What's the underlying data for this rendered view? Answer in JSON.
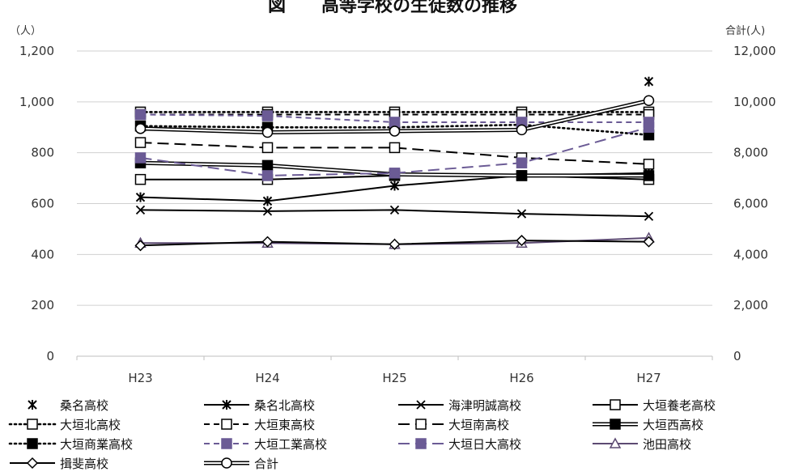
{
  "chart_data": {
    "type": "line",
    "title": "図　　高等学校の生徒数の推移",
    "left_unit": "（人）",
    "right_unit": "合計(人)",
    "categories": [
      "H23",
      "H24",
      "H25",
      "H26",
      "H27"
    ],
    "ylim": [
      0,
      1200
    ],
    "yticks": [
      "0",
      "200",
      "400",
      "600",
      "800",
      "1,000",
      "1,200"
    ],
    "y2lim": [
      0,
      12000
    ],
    "y2ticks": [
      "0",
      "2,000",
      "4,000",
      "6,000",
      "8,000",
      "10,000",
      "12,000"
    ],
    "grid": "horizontal",
    "legend_position": "bottom",
    "series": [
      {
        "name": "桑名高校",
        "values": [
          null,
          null,
          null,
          null,
          1080
        ],
        "axis": "left",
        "color": "#000000",
        "dash": "none",
        "line": false,
        "marker": "asterisk"
      },
      {
        "name": "桑名北高校",
        "values": [
          625,
          610,
          670,
          710,
          720
        ],
        "axis": "left",
        "color": "#000000",
        "dash": "solid",
        "line": true,
        "marker": "asterisk"
      },
      {
        "name": "海津明誠高校",
        "values": [
          575,
          570,
          575,
          560,
          550
        ],
        "axis": "left",
        "color": "#000000",
        "dash": "solid",
        "line": true,
        "marker": "x"
      },
      {
        "name": "大垣養老高校",
        "values": [
          695,
          695,
          710,
          710,
          695
        ],
        "axis": "left",
        "color": "#000000",
        "dash": "solid",
        "line": true,
        "marker": "square-open"
      },
      {
        "name": "大垣北高校",
        "values": [
          960,
          960,
          960,
          960,
          960
        ],
        "axis": "left",
        "color": "#000000",
        "dash": "dot",
        "line": true,
        "marker": "square-open"
      },
      {
        "name": "大垣東高校",
        "values": [
          950,
          950,
          950,
          950,
          950
        ],
        "axis": "left",
        "color": "#000000",
        "dash": "dash",
        "line": true,
        "marker": "square-open"
      },
      {
        "name": "大垣南高校",
        "values": [
          840,
          820,
          820,
          780,
          755
        ],
        "axis": "left",
        "color": "#000000",
        "dash": "longdash",
        "line": true,
        "marker": "square-open"
      },
      {
        "name": "大垣西高校",
        "values": [
          760,
          750,
          715,
          710,
          710
        ],
        "axis": "left",
        "color": "#000000",
        "dash": "double",
        "line": true,
        "marker": "square-filled"
      },
      {
        "name": "大垣商業高校",
        "values": [
          905,
          900,
          900,
          910,
          870
        ],
        "axis": "left",
        "color": "#000000",
        "dash": "dot",
        "line": true,
        "marker": "square-filled"
      },
      {
        "name": "大垣工業高校",
        "values": [
          950,
          945,
          920,
          920,
          920
        ],
        "axis": "left",
        "color": "#6b5b95",
        "dash": "dash",
        "line": true,
        "marker": "square-filled"
      },
      {
        "name": "大垣日大高校",
        "values": [
          780,
          710,
          720,
          760,
          900
        ],
        "axis": "left",
        "color": "#6b5b95",
        "dash": "longdash",
        "line": true,
        "marker": "square-filled"
      },
      {
        "name": "池田高校",
        "values": [
          445,
          445,
          440,
          445,
          465
        ],
        "axis": "left",
        "color": "#5c4a72",
        "dash": "solid",
        "line": true,
        "marker": "triangle-open"
      },
      {
        "name": "揖斐高校",
        "values": [
          435,
          450,
          440,
          455,
          450
        ],
        "axis": "left",
        "color": "#000000",
        "dash": "solid",
        "line": true,
        "marker": "diamond-open"
      },
      {
        "name": "合計",
        "values": [
          8950,
          8800,
          8850,
          8900,
          10050
        ],
        "axis": "right",
        "color": "#000000",
        "dash": "double",
        "line": true,
        "marker": "circle-open"
      }
    ]
  }
}
